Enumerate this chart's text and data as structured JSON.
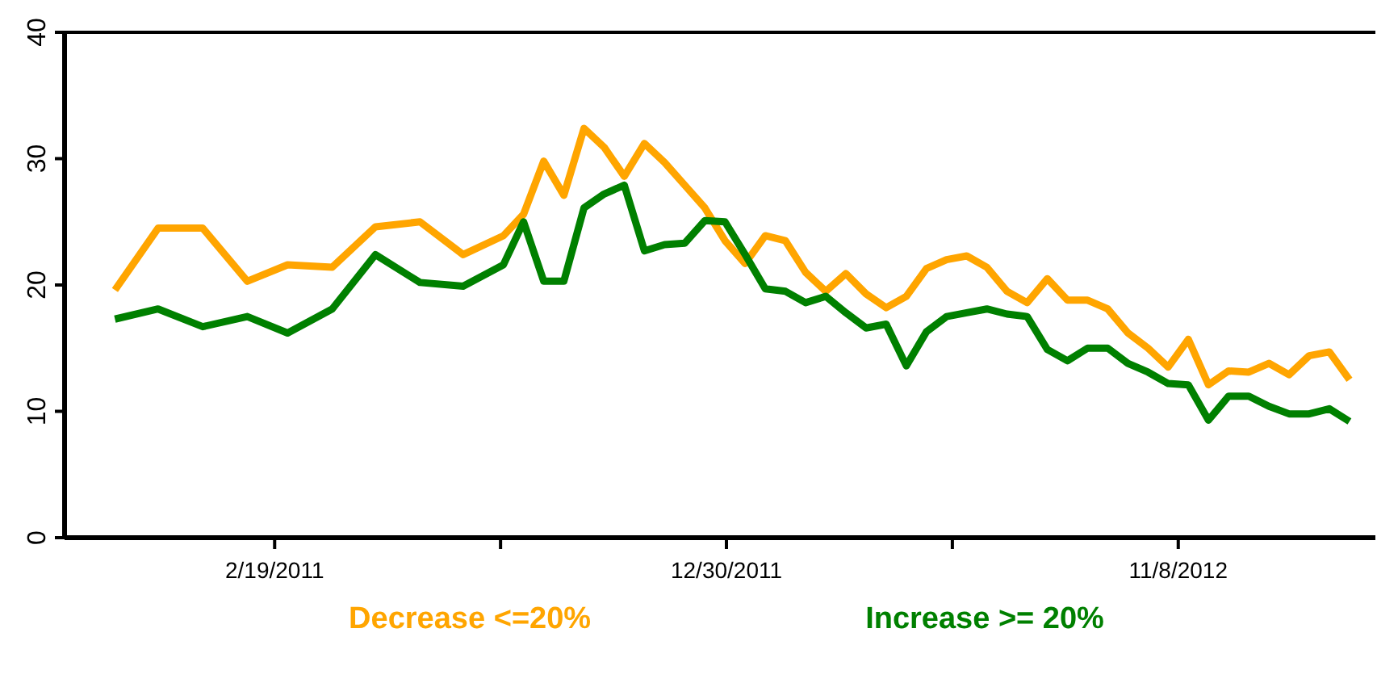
{
  "chart_data": {
    "type": "line",
    "x": [
      "2010-10-31",
      "2010-11-30",
      "2010-12-31",
      "2011-01-31",
      "2011-02-28",
      "2011-03-31",
      "2011-04-30",
      "2011-05-31",
      "2011-06-30",
      "2011-07-28",
      "2011-08-11",
      "2011-08-25",
      "2011-09-08",
      "2011-09-22",
      "2011-10-06",
      "2011-10-20",
      "2011-11-03",
      "2011-11-17",
      "2011-12-01",
      "2011-12-15",
      "2011-12-29",
      "2012-01-12",
      "2012-01-26",
      "2012-02-09",
      "2012-02-23",
      "2012-03-08",
      "2012-03-22",
      "2012-04-05",
      "2012-04-19",
      "2012-05-03",
      "2012-05-17",
      "2012-05-31",
      "2012-06-14",
      "2012-06-28",
      "2012-07-12",
      "2012-07-26",
      "2012-08-09",
      "2012-08-23",
      "2012-09-06",
      "2012-09-20",
      "2012-10-04",
      "2012-10-18",
      "2012-11-01",
      "2012-11-15",
      "2012-11-29",
      "2012-12-13",
      "2012-12-27",
      "2013-01-10",
      "2013-01-24",
      "2013-02-07",
      "2013-02-21",
      "2013-03-07"
    ],
    "series": [
      {
        "name": "Decrease <=20%",
        "color": "#ffa500",
        "values": [
          19.6,
          24.5,
          24.5,
          20.3,
          21.6,
          21.4,
          24.6,
          25.0,
          22.4,
          23.9,
          25.6,
          29.8,
          27.1,
          32.4,
          30.9,
          28.6,
          31.2,
          29.7,
          27.9,
          26.1,
          23.5,
          21.7,
          23.9,
          23.5,
          21.0,
          19.5,
          20.9,
          19.3,
          18.2,
          19.1,
          21.3,
          22.0,
          22.3,
          21.4,
          19.5,
          18.6,
          20.5,
          18.8,
          18.8,
          18.1,
          16.2,
          15.0,
          13.5,
          15.7,
          12.1,
          13.2,
          13.1,
          13.8,
          12.9,
          14.4,
          14.7,
          12.5
        ]
      },
      {
        "name": "Increase >= 20%",
        "color": "#008000",
        "values": [
          17.3,
          18.1,
          16.7,
          17.5,
          16.2,
          18.1,
          22.4,
          20.2,
          19.9,
          21.6,
          25.0,
          20.3,
          20.3,
          26.1,
          27.2,
          27.9,
          22.7,
          23.2,
          23.3,
          25.1,
          25.0,
          22.4,
          19.7,
          19.5,
          18.6,
          19.1,
          17.8,
          16.6,
          16.9,
          13.6,
          16.3,
          17.5,
          17.8,
          18.1,
          17.7,
          17.5,
          14.9,
          14.0,
          15.0,
          15.0,
          13.8,
          13.1,
          12.2,
          12.1,
          9.3,
          11.2,
          11.2,
          10.4,
          9.8,
          9.8,
          10.2,
          9.2
        ]
      }
    ],
    "xlim": [
      "2010-09-26",
      "2013-03-25"
    ],
    "xticks": [
      {
        "value": "2011-02-19",
        "label": "2/19/2011"
      },
      {
        "value": "2011-07-26",
        "label": null
      },
      {
        "value": "2011-12-30",
        "label": "12/30/2011"
      },
      {
        "value": "2012-06-04",
        "label": null
      },
      {
        "value": "2012-11-08",
        "label": "11/8/2012"
      }
    ],
    "ylim": [
      0,
      40
    ],
    "yticks": [
      0,
      10,
      20,
      30,
      40
    ],
    "grid": false,
    "legend": "bottom",
    "marker": "none",
    "line_style": "solid"
  }
}
